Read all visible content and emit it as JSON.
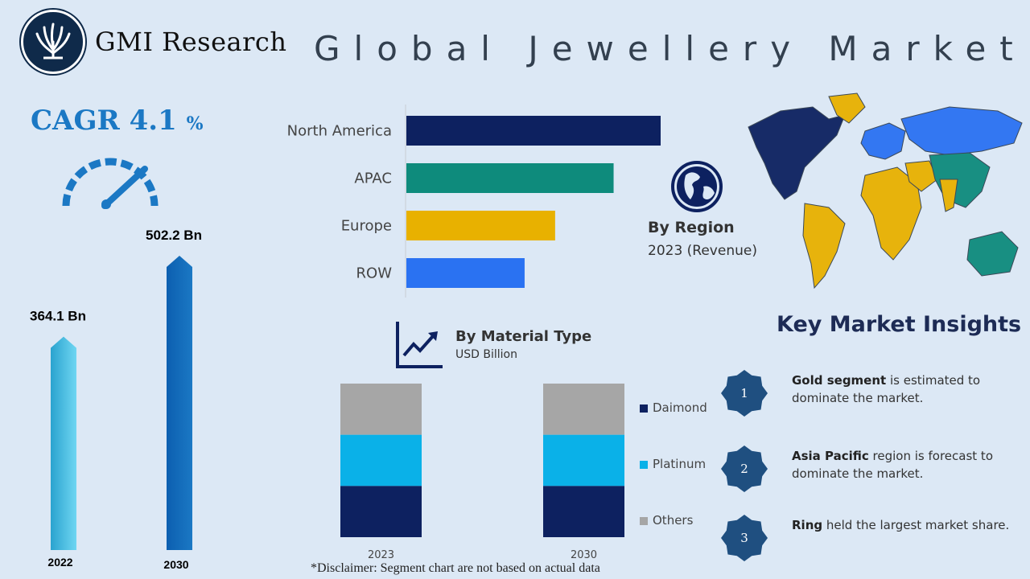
{
  "brand": {
    "name": "GMI Research"
  },
  "title": "Global Jewellery Market",
  "cagr": {
    "label": "CAGR",
    "value": "4.1",
    "unit": "%"
  },
  "growth": {
    "bars": [
      {
        "year": "2022",
        "value_label": "364.1 Bn",
        "value": 364.1
      },
      {
        "year": "2030",
        "value_label": "502.2 Bn",
        "value": 502.2
      }
    ]
  },
  "region": {
    "title": "By Region",
    "subtitle": "2023 (Revenue)"
  },
  "material": {
    "title": "By Material Type",
    "subtitle": "USD Billion"
  },
  "disclaimer": "*Disclaimer:   Segment chart are not based on actual data",
  "insights": {
    "title": "Key Market Insights",
    "items": [
      {
        "num": "1",
        "bold": "Gold segment",
        "rest": " is estimated to dominate the market."
      },
      {
        "num": "2",
        "bold": "Asia Pacific",
        "rest": " region is forecast to dominate the market."
      },
      {
        "num": "3",
        "bold": "Ring",
        "rest": "  held the largest market share."
      }
    ]
  },
  "colors": {
    "north_america": "#0d2160",
    "apac": "#0e8b7c",
    "europe": "#e8b100",
    "row": "#2a72f2",
    "diamond": "#0d2160",
    "platinum": "#0ab1e8",
    "others": "#a6a6a6",
    "accent": "#1b78c4"
  },
  "chart_data": [
    {
      "type": "bar",
      "orientation": "horizontal",
      "categories": [
        "North America",
        "APAC",
        "Europe",
        "ROW"
      ],
      "values": [
        100,
        81.5,
        58.5,
        46.5
      ],
      "colors": [
        "#0d2160",
        "#0e8b7c",
        "#e8b100",
        "#2a72f2"
      ]
    },
    {
      "type": "bar",
      "stacked": true,
      "categories": [
        "2023",
        "2030"
      ],
      "series": [
        {
          "name": "Others",
          "values": [
            33.3,
            33.3
          ],
          "color": "#a6a6a6"
        },
        {
          "name": "Platinum",
          "values": [
            33.3,
            33.3
          ],
          "color": "#0ab1e8"
        },
        {
          "name": "Daimond",
          "values": [
            33.3,
            33.3
          ],
          "color": "#0d2160"
        }
      ],
      "legend_order": [
        "Daimond",
        "Platinum",
        "Others"
      ]
    },
    {
      "type": "bar",
      "categories": [
        "2022",
        "2030"
      ],
      "values": [
        364.1,
        502.2
      ]
    }
  ]
}
